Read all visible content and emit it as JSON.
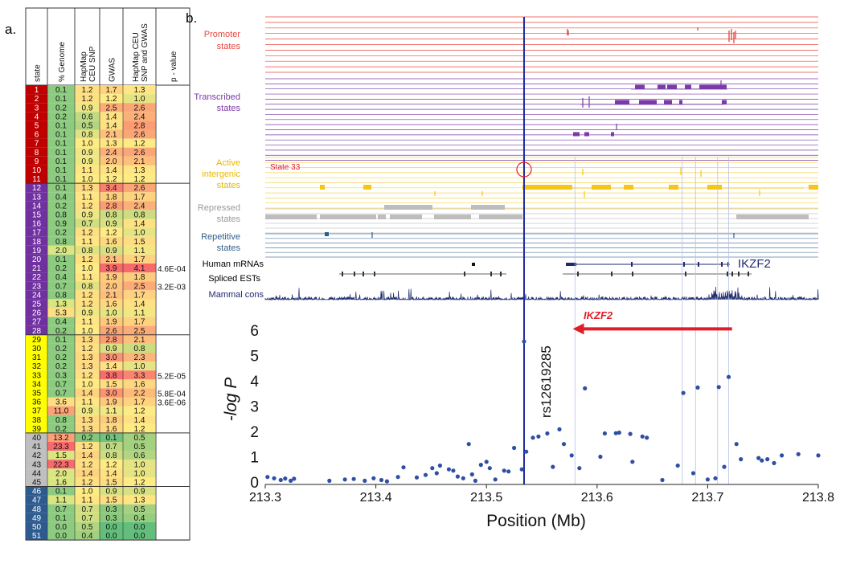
{
  "panel_a": {
    "label": "a.",
    "columns": [
      "state",
      "% Genome",
      "HapMap CEU SNP",
      "GWAS",
      "HapMap CEU SNP and GWAS",
      "p - value"
    ],
    "rows": [
      [
        "1",
        "0.1",
        "1.2",
        "1.7",
        "1.3",
        ""
      ],
      [
        "2",
        "0.1",
        "1.2",
        "1.2",
        "1.0",
        ""
      ],
      [
        "3",
        "0.2",
        "0.9",
        "2.5",
        "2.6",
        ""
      ],
      [
        "4",
        "0.2",
        "0.6",
        "1.4",
        "2.4",
        ""
      ],
      [
        "5",
        "0.1",
        "0.5",
        "1.4",
        "2.8",
        ""
      ],
      [
        "6",
        "0.1",
        "0.8",
        "2.1",
        "2.6",
        ""
      ],
      [
        "7",
        "0.1",
        "1.0",
        "1.3",
        "1.2",
        ""
      ],
      [
        "8",
        "0.1",
        "0.9",
        "2.4",
        "2.6",
        ""
      ],
      [
        "9",
        "0.1",
        "0.9",
        "2.0",
        "2.1",
        ""
      ],
      [
        "10",
        "0.1",
        "1.1",
        "1.4",
        "1.3",
        ""
      ],
      [
        "11",
        "0.1",
        "1.0",
        "1.2",
        "1.2",
        ""
      ],
      [
        "12",
        "0.1",
        "1.3",
        "3.4",
        "2.6",
        ""
      ],
      [
        "13",
        "0.4",
        "1.1",
        "1.8",
        "1.7",
        ""
      ],
      [
        "14",
        "0.2",
        "1.2",
        "2.8",
        "2.4",
        ""
      ],
      [
        "15",
        "0.8",
        "0.9",
        "0.8",
        "0.8",
        ""
      ],
      [
        "16",
        "0.9",
        "0.7",
        "0.9",
        "1.4",
        ""
      ],
      [
        "17",
        "0.2",
        "1.2",
        "1.2",
        "1.0",
        ""
      ],
      [
        "18",
        "0.8",
        "1.1",
        "1.6",
        "1.5",
        ""
      ],
      [
        "19",
        "2.0",
        "0.8",
        "0.9",
        "1.1",
        ""
      ],
      [
        "20",
        "0.1",
        "1.2",
        "2.1",
        "1.7",
        ""
      ],
      [
        "21",
        "0.2",
        "1.0",
        "3.9",
        "4.1",
        "4.6E-04"
      ],
      [
        "22",
        "0.4",
        "1.1",
        "1.9",
        "1.8",
        ""
      ],
      [
        "23",
        "0.7",
        "0.8",
        "2.0",
        "2.5",
        "3.2E-03"
      ],
      [
        "24",
        "0.8",
        "1.2",
        "2.1",
        "1.7",
        ""
      ],
      [
        "25",
        "1.3",
        "1.2",
        "1.6",
        "1.4",
        ""
      ],
      [
        "26",
        "5.3",
        "0.9",
        "1.0",
        "1.1",
        ""
      ],
      [
        "27",
        "0.4",
        "1.1",
        "1.9",
        "1.7",
        ""
      ],
      [
        "28",
        "0.2",
        "1.0",
        "2.6",
        "2.5",
        ""
      ],
      [
        "29",
        "0.1",
        "1.3",
        "2.8",
        "2.1",
        ""
      ],
      [
        "30",
        "0.2",
        "1.2",
        "0.9",
        "0.8",
        ""
      ],
      [
        "31",
        "0.2",
        "1.3",
        "3.0",
        "2.3",
        ""
      ],
      [
        "32",
        "0.2",
        "1.3",
        "1.4",
        "1.0",
        ""
      ],
      [
        "33",
        "0.3",
        "1.2",
        "3.8",
        "3.3",
        "5.2E-05"
      ],
      [
        "34",
        "0.7",
        "1.0",
        "1.5",
        "1.6",
        ""
      ],
      [
        "35",
        "0.7",
        "1.4",
        "3.0",
        "2.2",
        "5.8E-04"
      ],
      [
        "36",
        "3.6",
        "1.1",
        "1.9",
        "1.7",
        "3.6E-06"
      ],
      [
        "37",
        "11.0",
        "0.9",
        "1.1",
        "1.2",
        ""
      ],
      [
        "38",
        "0.8",
        "1.3",
        "1.8",
        "1.4",
        ""
      ],
      [
        "39",
        "0.2",
        "1.3",
        "1.6",
        "1.2",
        ""
      ],
      [
        "40",
        "13.2",
        "0.2",
        "0.1",
        "0.5",
        ""
      ],
      [
        "41",
        "23.3",
        "1.2",
        "0.7",
        "0.5",
        ""
      ],
      [
        "42",
        "1.5",
        "1.4",
        "0.8",
        "0.6",
        ""
      ],
      [
        "43",
        "22.3",
        "1.2",
        "1.2",
        "1.0",
        ""
      ],
      [
        "44",
        "2.0",
        "1.4",
        "1.4",
        "1.0",
        ""
      ],
      [
        "45",
        "1.6",
        "1.2",
        "1.5",
        "1.2",
        ""
      ],
      [
        "46",
        "0.1",
        "1.0",
        "0.9",
        "0.9",
        ""
      ],
      [
        "47",
        "1.1",
        "1.1",
        "1.5",
        "1.3",
        ""
      ],
      [
        "48",
        "0.7",
        "0.7",
        "0.3",
        "0.5",
        ""
      ],
      [
        "49",
        "0.1",
        "0.7",
        "0.3",
        "0.4",
        ""
      ],
      [
        "50",
        "0.0",
        "0.5",
        "0.0",
        "0.0",
        ""
      ],
      [
        "51",
        "0.0",
        "0.4",
        "0.0",
        "0.0",
        ""
      ]
    ],
    "groups": [
      {
        "name": "promoter",
        "from": 1,
        "to": 11,
        "color": "#c00000"
      },
      {
        "name": "transcribed",
        "from": 12,
        "to": 28,
        "color": "#7030a0"
      },
      {
        "name": "active intergenic",
        "from": 29,
        "to": 39,
        "color": "#ffff00"
      },
      {
        "name": "repressed",
        "from": 40,
        "to": 45,
        "color": "#bfbfbf"
      },
      {
        "name": "repetitive",
        "from": 46,
        "to": 51,
        "color": "#2e5b8f"
      }
    ]
  },
  "panel_b": {
    "label": "b.",
    "track_labels": {
      "promoter": [
        "Promoter",
        "states"
      ],
      "transcribed": [
        "Transcribed",
        "states"
      ],
      "active": [
        "Active",
        "intergenic",
        "states"
      ],
      "state33": "State 33",
      "repressed": [
        "Repressed",
        "states"
      ],
      "repetitive": [
        "Repetitive",
        "states"
      ],
      "mrna": "Human mRNAs",
      "est": "Spliced ESTs",
      "cons": "Mammal cons",
      "gene_track": "IKZF2"
    },
    "colors": {
      "promoter": "#e8453c",
      "transcribed": "#7a3aa8",
      "active": "#f5c518",
      "repressed": "#bdbdbd",
      "repetitive": "#2f5d8a",
      "snp_line": "#1f2a9e",
      "arrow": "#e01e2a",
      "points": "#2e4fa3"
    },
    "gene_arrow_label": "IKZF2",
    "snp_label": "rs12619285"
  },
  "chart_data": {
    "type": "scatter",
    "title": "",
    "xlabel": "Position (Mb)",
    "ylabel": "-log P",
    "xlim": [
      213.3,
      213.8
    ],
    "ylim": [
      0,
      6.6
    ],
    "xticks": [
      "213.3",
      "213.4",
      "213.5",
      "213.6",
      "213.7",
      "213.8"
    ],
    "yticks": [
      "0",
      "1",
      "2",
      "3",
      "4",
      "5",
      "6"
    ],
    "lead_snp": {
      "name": "rs12619285",
      "x": 213.534,
      "y": 5.55
    },
    "gene_arrow": {
      "label": "IKZF2",
      "x_start": 213.722,
      "x_end": 213.578,
      "y": 6.05
    },
    "points": [
      [
        213.302,
        0.2
      ],
      [
        213.308,
        0.15
      ],
      [
        213.314,
        0.08
      ],
      [
        213.318,
        0.14
      ],
      [
        213.323,
        0.05
      ],
      [
        213.326,
        0.13
      ],
      [
        213.358,
        0.05
      ],
      [
        213.372,
        0.1
      ],
      [
        213.38,
        0.12
      ],
      [
        213.39,
        0.05
      ],
      [
        213.398,
        0.15
      ],
      [
        213.405,
        0.08
      ],
      [
        213.41,
        0.03
      ],
      [
        213.42,
        0.2
      ],
      [
        213.425,
        0.58
      ],
      [
        213.437,
        0.18
      ],
      [
        213.445,
        0.28
      ],
      [
        213.451,
        0.55
      ],
      [
        213.455,
        0.35
      ],
      [
        213.458,
        0.65
      ],
      [
        213.466,
        0.5
      ],
      [
        213.47,
        0.45
      ],
      [
        213.474,
        0.22
      ],
      [
        213.479,
        0.15
      ],
      [
        213.484,
        1.5
      ],
      [
        213.487,
        0.3
      ],
      [
        213.49,
        0.05
      ],
      [
        213.495,
        0.68
      ],
      [
        213.5,
        0.8
      ],
      [
        213.503,
        0.55
      ],
      [
        213.508,
        0.1
      ],
      [
        213.516,
        0.45
      ],
      [
        213.52,
        0.42
      ],
      [
        213.525,
        1.35
      ],
      [
        213.532,
        0.5
      ],
      [
        213.536,
        1.2
      ],
      [
        213.542,
        1.75
      ],
      [
        213.547,
        1.8
      ],
      [
        213.555,
        1.92
      ],
      [
        213.56,
        0.6
      ],
      [
        213.566,
        2.08
      ],
      [
        213.57,
        1.5
      ],
      [
        213.577,
        1.05
      ],
      [
        213.584,
        0.55
      ],
      [
        213.589,
        3.7
      ],
      [
        213.603,
        1.0
      ],
      [
        213.607,
        1.92
      ],
      [
        213.617,
        1.93
      ],
      [
        213.62,
        1.95
      ],
      [
        213.63,
        1.9
      ],
      [
        213.632,
        0.8
      ],
      [
        213.641,
        1.8
      ],
      [
        213.645,
        1.75
      ],
      [
        213.659,
        0.08
      ],
      [
        213.673,
        0.65
      ],
      [
        213.678,
        3.52
      ],
      [
        213.687,
        0.35
      ],
      [
        213.691,
        3.73
      ],
      [
        213.7,
        0.1
      ],
      [
        213.707,
        0.15
      ],
      [
        213.71,
        3.75
      ],
      [
        213.715,
        0.6
      ],
      [
        213.719,
        4.15
      ],
      [
        213.726,
        1.5
      ],
      [
        213.73,
        0.9
      ],
      [
        213.746,
        0.95
      ],
      [
        213.749,
        0.85
      ],
      [
        213.754,
        0.9
      ],
      [
        213.76,
        0.75
      ],
      [
        213.767,
        1.05
      ],
      [
        213.782,
        1.1
      ],
      [
        213.8,
        1.05
      ]
    ],
    "guide_lines_x": [
      213.58,
      213.677,
      213.689,
      213.709,
      213.719
    ]
  }
}
